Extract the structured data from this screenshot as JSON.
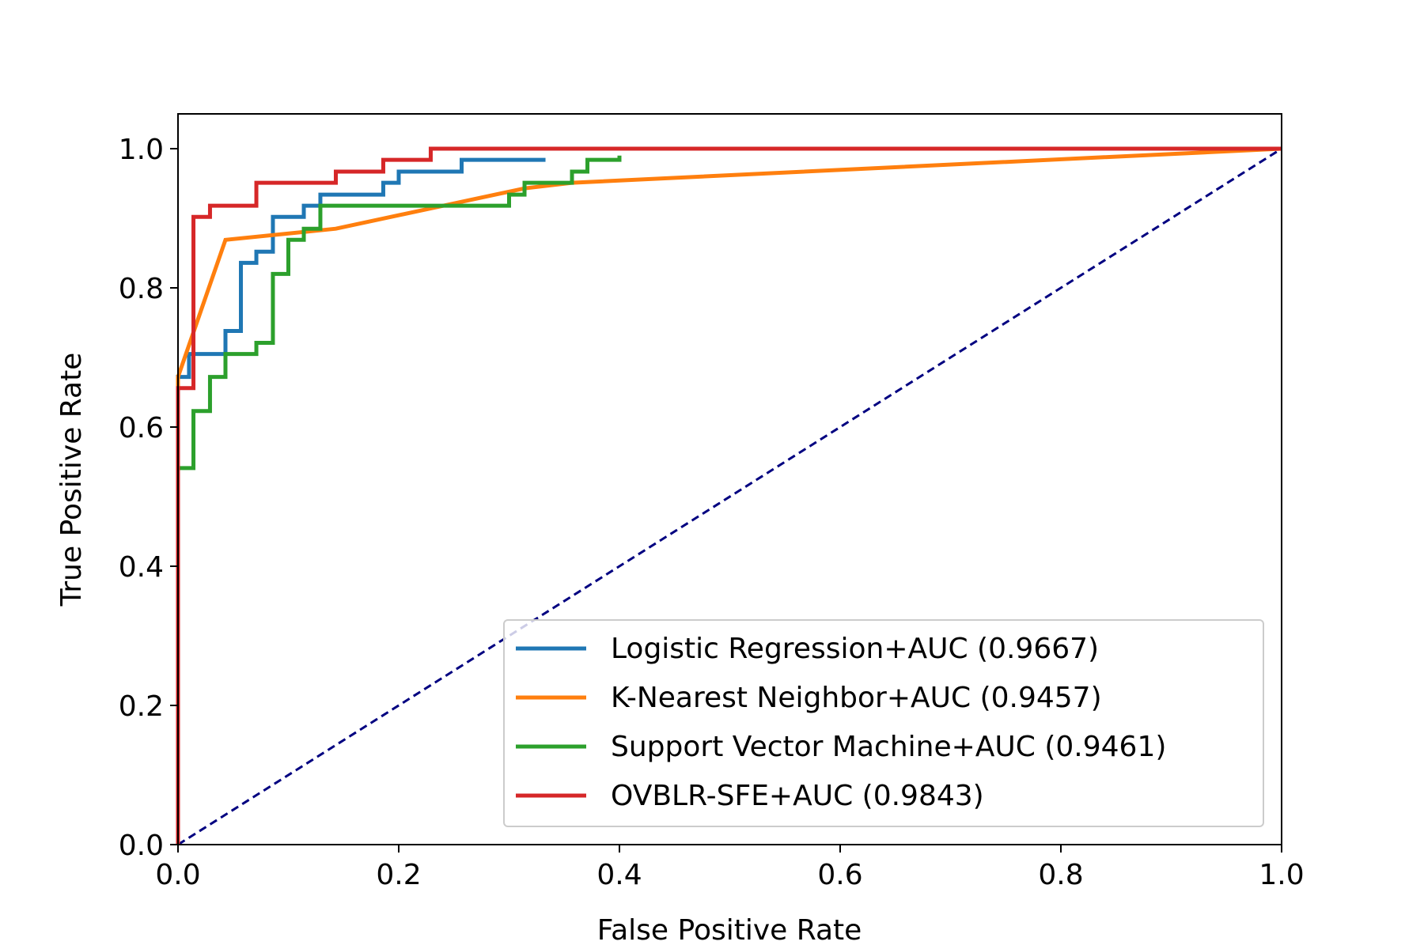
{
  "chart_data": {
    "type": "line",
    "title": "",
    "xlabel": "False Positive Rate",
    "ylabel": "True Positive Rate",
    "xlim": [
      0.0,
      1.0
    ],
    "ylim": [
      0.0,
      1.05
    ],
    "xticks": [
      "0.0",
      "0.2",
      "0.4",
      "0.6",
      "0.8",
      "1.0"
    ],
    "yticks": [
      "0.0",
      "0.2",
      "0.4",
      "0.6",
      "0.8",
      "1.0"
    ],
    "grid": false,
    "legend_position": "lower-right",
    "reference_line": {
      "x": [
        0.0,
        1.0
      ],
      "y": [
        0.0,
        1.0
      ],
      "color": "#000080",
      "style": "dashed"
    },
    "series": [
      {
        "name": "Logistic Regression+AUC (0.9667)",
        "color": "#1f77b4",
        "x": [
          0.0,
          0.0,
          0.01,
          0.01,
          0.043,
          0.043,
          0.057,
          0.057,
          0.071,
          0.071,
          0.086,
          0.086,
          0.114,
          0.114,
          0.129,
          0.129,
          0.186,
          0.186,
          0.2,
          0.2,
          0.257,
          0.257,
          0.333
        ],
        "y": [
          0.0,
          0.672,
          0.672,
          0.705,
          0.705,
          0.738,
          0.738,
          0.836,
          0.836,
          0.852,
          0.852,
          0.902,
          0.902,
          0.918,
          0.918,
          0.934,
          0.934,
          0.951,
          0.951,
          0.967,
          0.967,
          0.984,
          0.984
        ]
      },
      {
        "name": "K-Nearest Neighbor+AUC (0.9457)",
        "color": "#ff7f0e",
        "x": [
          0.0,
          0.0,
          0.043,
          0.143,
          0.314,
          0.357,
          1.0
        ],
        "y": [
          0.0,
          0.672,
          0.869,
          0.885,
          0.943,
          0.951,
          1.0
        ]
      },
      {
        "name": "Support Vector Machine+AUC (0.9461)",
        "color": "#2ca02c",
        "x": [
          0.0,
          0.0,
          0.014,
          0.014,
          0.029,
          0.029,
          0.043,
          0.043,
          0.071,
          0.071,
          0.086,
          0.086,
          0.1,
          0.1,
          0.114,
          0.114,
          0.129,
          0.129,
          0.3,
          0.3,
          0.314,
          0.314,
          0.357,
          0.357,
          0.371,
          0.371,
          0.4,
          0.4
        ],
        "y": [
          0.0,
          0.541,
          0.541,
          0.623,
          0.623,
          0.672,
          0.672,
          0.705,
          0.705,
          0.721,
          0.721,
          0.82,
          0.82,
          0.869,
          0.869,
          0.885,
          0.885,
          0.918,
          0.918,
          0.934,
          0.934,
          0.951,
          0.951,
          0.967,
          0.967,
          0.984,
          0.984,
          0.99
        ]
      },
      {
        "name": "OVBLR-SFE+AUC (0.9843)",
        "color": "#d62728",
        "x": [
          0.0,
          0.0,
          0.014,
          0.014,
          0.029,
          0.029,
          0.071,
          0.071,
          0.143,
          0.143,
          0.186,
          0.186,
          0.229,
          0.229,
          1.0
        ],
        "y": [
          0.0,
          0.656,
          0.656,
          0.902,
          0.902,
          0.918,
          0.918,
          0.951,
          0.951,
          0.967,
          0.967,
          0.984,
          0.984,
          1.0,
          1.0
        ]
      }
    ]
  }
}
